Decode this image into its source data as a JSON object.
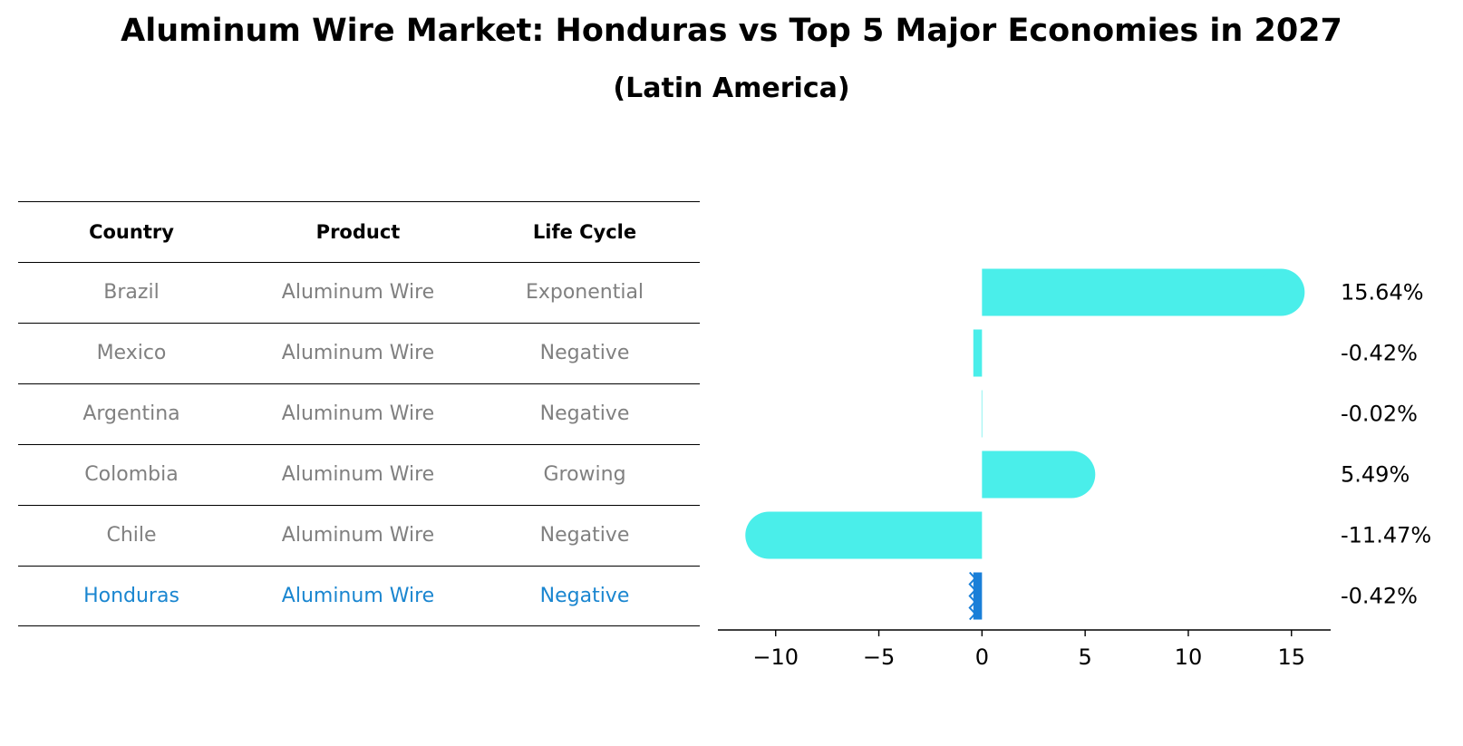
{
  "title": "Aluminum Wire Market: Honduras vs Top 5 Major Economies in 2027",
  "subtitle": "(Latin America)",
  "table": {
    "headers": [
      "Country",
      "Product",
      "Life Cycle"
    ],
    "rows": [
      [
        "Brazil",
        "Aluminum Wire",
        "Exponential"
      ],
      [
        "Mexico",
        "Aluminum Wire",
        "Negative"
      ],
      [
        "Argentina",
        "Aluminum Wire",
        "Negative"
      ],
      [
        "Colombia",
        "Aluminum Wire",
        "Growing"
      ],
      [
        "Chile",
        "Aluminum Wire",
        "Negative"
      ],
      [
        "Honduras",
        "Aluminum Wire",
        "Negative"
      ]
    ],
    "highlight_row": 5,
    "text_color": "#808080",
    "highlight_color": "#1a86d0"
  },
  "chart_data": {
    "type": "bar",
    "orientation": "horizontal",
    "categories": [
      "Brazil",
      "Mexico",
      "Argentina",
      "Colombia",
      "Chile",
      "Honduras"
    ],
    "values": [
      15.64,
      -0.42,
      -0.02,
      5.49,
      -11.47,
      -0.42
    ],
    "value_labels": [
      "15.64%",
      "-0.42%",
      "-0.02%",
      "5.49%",
      "-11.47%",
      "-0.42%"
    ],
    "xlim": [
      -12.8,
      16.9
    ],
    "xticks": [
      -10,
      -5,
      0,
      5,
      10,
      15
    ],
    "xtick_labels": [
      "−10",
      "−5",
      "0",
      "5",
      "10",
      "15"
    ],
    "bar_color": "#4aeeea",
    "highlight_color": "#1a7fd8",
    "highlight_index": 5,
    "grid": false
  }
}
